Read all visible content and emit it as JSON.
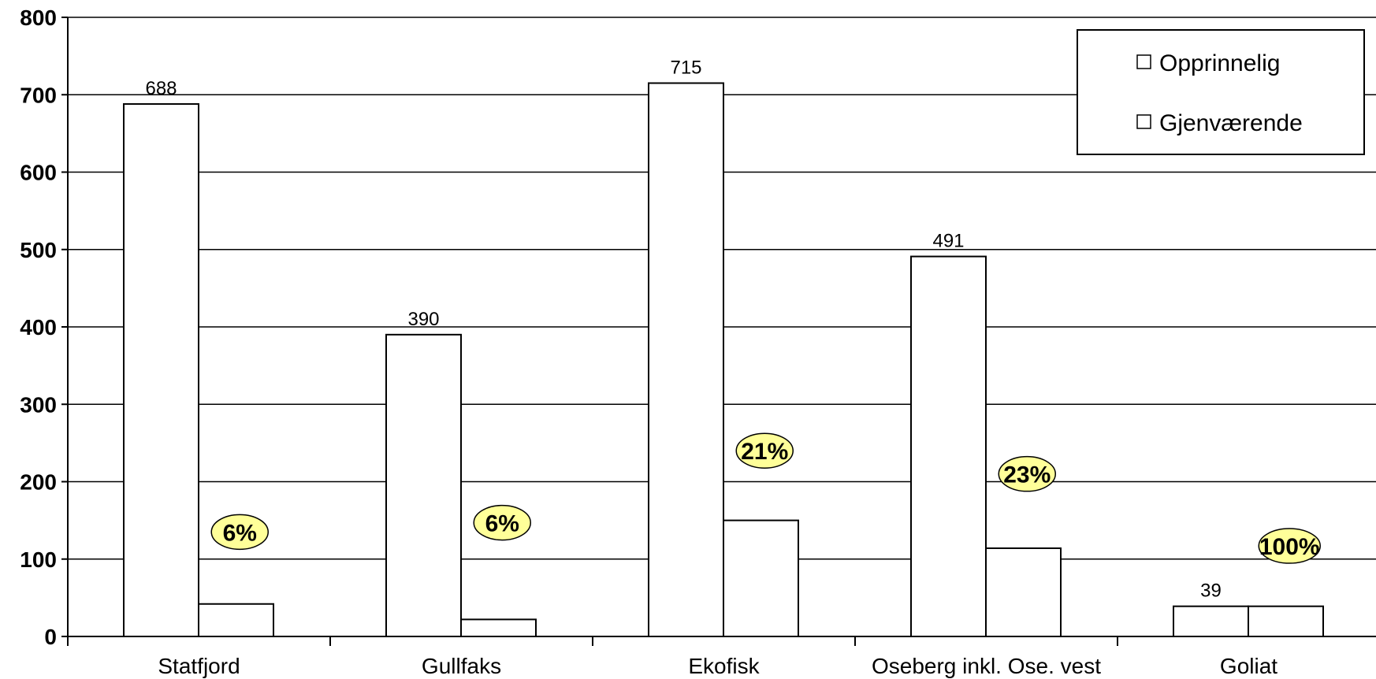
{
  "chart_data": {
    "type": "bar",
    "categories": [
      "Statfjord",
      "Gullfaks",
      "Ekofisk",
      "Oseberg inkl. Ose. vest",
      "Goliat"
    ],
    "series": [
      {
        "name": "Opprinnelig",
        "values": [
          688,
          390,
          715,
          491,
          39
        ],
        "labels": [
          "688",
          "390",
          "715",
          "491",
          "39"
        ]
      },
      {
        "name": "Gjenværende",
        "values": [
          42,
          22,
          150,
          114,
          39
        ]
      }
    ],
    "percent_annotations": [
      "6%",
      "6%",
      "21%",
      "23%",
      "100%"
    ],
    "percent_positions": [
      135,
      147,
      240,
      210,
      117
    ],
    "ylim": [
      0,
      800
    ],
    "yticks": [
      0,
      100,
      200,
      300,
      400,
      500,
      600,
      700,
      800
    ],
    "ytick_labels": [
      "0",
      "100",
      "200",
      "300",
      "400",
      "500",
      "600",
      "700",
      "800"
    ],
    "grid": true,
    "legend_position": "top-right",
    "colors": {
      "bar_fill": "#ffffff",
      "bar_stroke": "#000000",
      "annotation_fill": "#ffff99"
    }
  }
}
